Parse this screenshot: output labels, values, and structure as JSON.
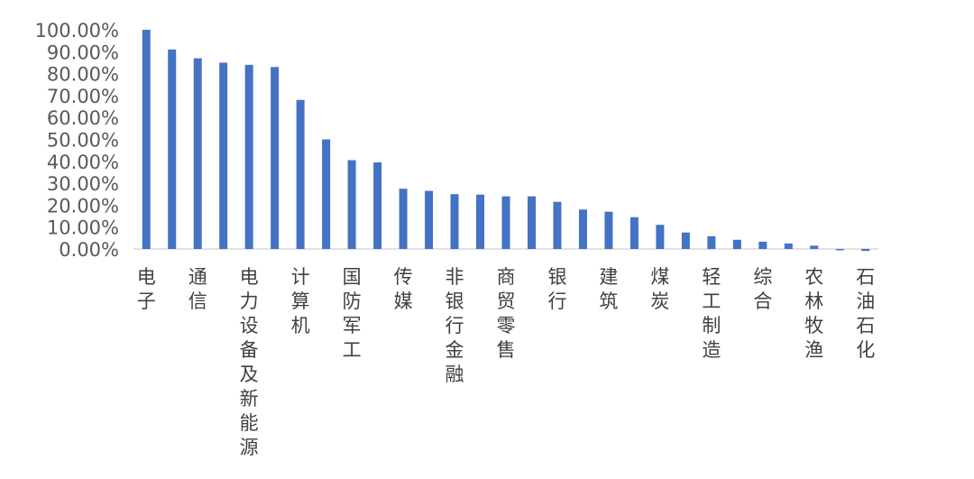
{
  "chart_data": {
    "type": "bar",
    "title": "",
    "xlabel": "",
    "ylabel": "",
    "ylim": [
      0,
      100
    ],
    "grid": false,
    "legend": "none",
    "bar_color": "#4472C4",
    "y_ticks": [
      "0.00%",
      "10.00%",
      "20.00%",
      "30.00%",
      "40.00%",
      "50.00%",
      "60.00%",
      "70.00%",
      "80.00%",
      "90.00%",
      "100.00%"
    ],
    "y_tick_values": [
      0,
      10,
      20,
      30,
      40,
      50,
      60,
      70,
      80,
      90,
      100
    ],
    "categories": [
      "电子",
      "",
      "通信",
      "",
      "电力设备及新能源",
      "",
      "计算机",
      "",
      "国防军工",
      "",
      "传媒",
      "",
      "非银行金融",
      "",
      "商贸零售",
      "",
      "银行",
      "",
      "建筑",
      "",
      "煤炭",
      "",
      "轻工制造",
      "",
      "综合",
      "",
      "农林牧渔",
      "",
      "石油石化"
    ],
    "values": [
      100,
      91,
      87,
      85,
      84,
      83,
      68,
      50,
      40.5,
      39.5,
      27.5,
      26.5,
      25,
      24.8,
      24,
      24,
      21.5,
      18,
      17,
      14.5,
      11,
      7.5,
      5.8,
      4.2,
      3.3,
      2.5,
      1.5,
      -0.6,
      -0.9
    ]
  }
}
